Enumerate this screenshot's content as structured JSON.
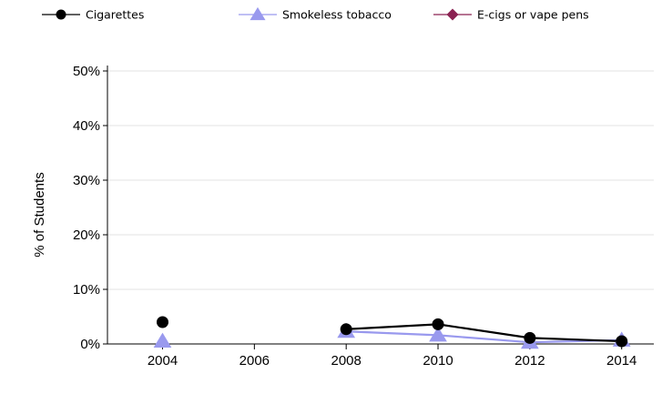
{
  "chart_data": {
    "type": "line",
    "title": "",
    "xlabel": "",
    "ylabel": "% of Students",
    "x": [
      2004,
      2006,
      2008,
      2010,
      2012,
      2014
    ],
    "xlim": [
      2002.8,
      2014.7
    ],
    "ylim": [
      0,
      50
    ],
    "y_ticks": [
      0,
      10,
      20,
      30,
      40,
      50
    ],
    "y_tick_labels": [
      "0%",
      "10%",
      "20%",
      "30%",
      "40%",
      "50%"
    ],
    "x_tick_labels": [
      "2004",
      "2006",
      "2008",
      "2010",
      "2012",
      "2014"
    ],
    "grid": "horizontal",
    "legend_position": "top",
    "series": [
      {
        "name": "Cigarettes",
        "color": "#000000",
        "marker": "circle",
        "values": [
          4.0,
          null,
          2.7,
          3.6,
          1.1,
          0.5
        ],
        "connected_from_index": 2
      },
      {
        "name": "Smokeless tobacco",
        "color": "#9999ee",
        "marker": "triangle",
        "values": [
          0.5,
          null,
          2.3,
          1.6,
          0.3,
          0.7
        ],
        "connected_from_index": 2
      },
      {
        "name": "E-cigs or vape pens",
        "color": "#8b2252",
        "marker": "diamond",
        "values": [
          null,
          null,
          null,
          null,
          null,
          null
        ],
        "connected_from_index": 0
      }
    ]
  }
}
